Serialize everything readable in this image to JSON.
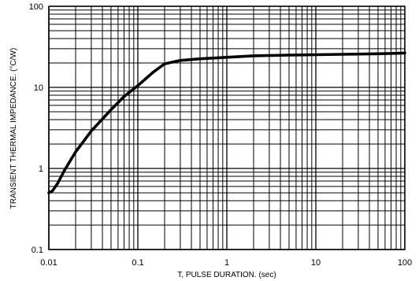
{
  "chart_data": {
    "type": "line",
    "xlabel": "T, PULSE DURATION. (sec)",
    "ylabel": "TRANSIENT THERMAL IMPEDANCE. (°C/W)",
    "x_scale": "log",
    "y_scale": "log",
    "xlim": [
      0.01,
      100
    ],
    "ylim": [
      0.1,
      100
    ],
    "grid": true,
    "x_tick_labels": [
      "0.01",
      "0.1",
      "1",
      "10",
      "100"
    ],
    "y_tick_labels": [
      "0.1",
      "1",
      "10",
      "100"
    ],
    "series": [
      {
        "x": [
          0.01,
          0.011,
          0.0125,
          0.015,
          0.02,
          0.03,
          0.05,
          0.07,
          0.1,
          0.15,
          0.2,
          0.3,
          0.5,
          1,
          2,
          5,
          10,
          20,
          50,
          100
        ],
        "y": [
          0.5,
          0.53,
          0.65,
          0.95,
          1.6,
          2.9,
          5.3,
          7.7,
          10.5,
          15.5,
          19.5,
          21.5,
          22.5,
          23.5,
          24.5,
          25,
          25.3,
          25.6,
          26,
          26.5
        ]
      }
    ]
  }
}
